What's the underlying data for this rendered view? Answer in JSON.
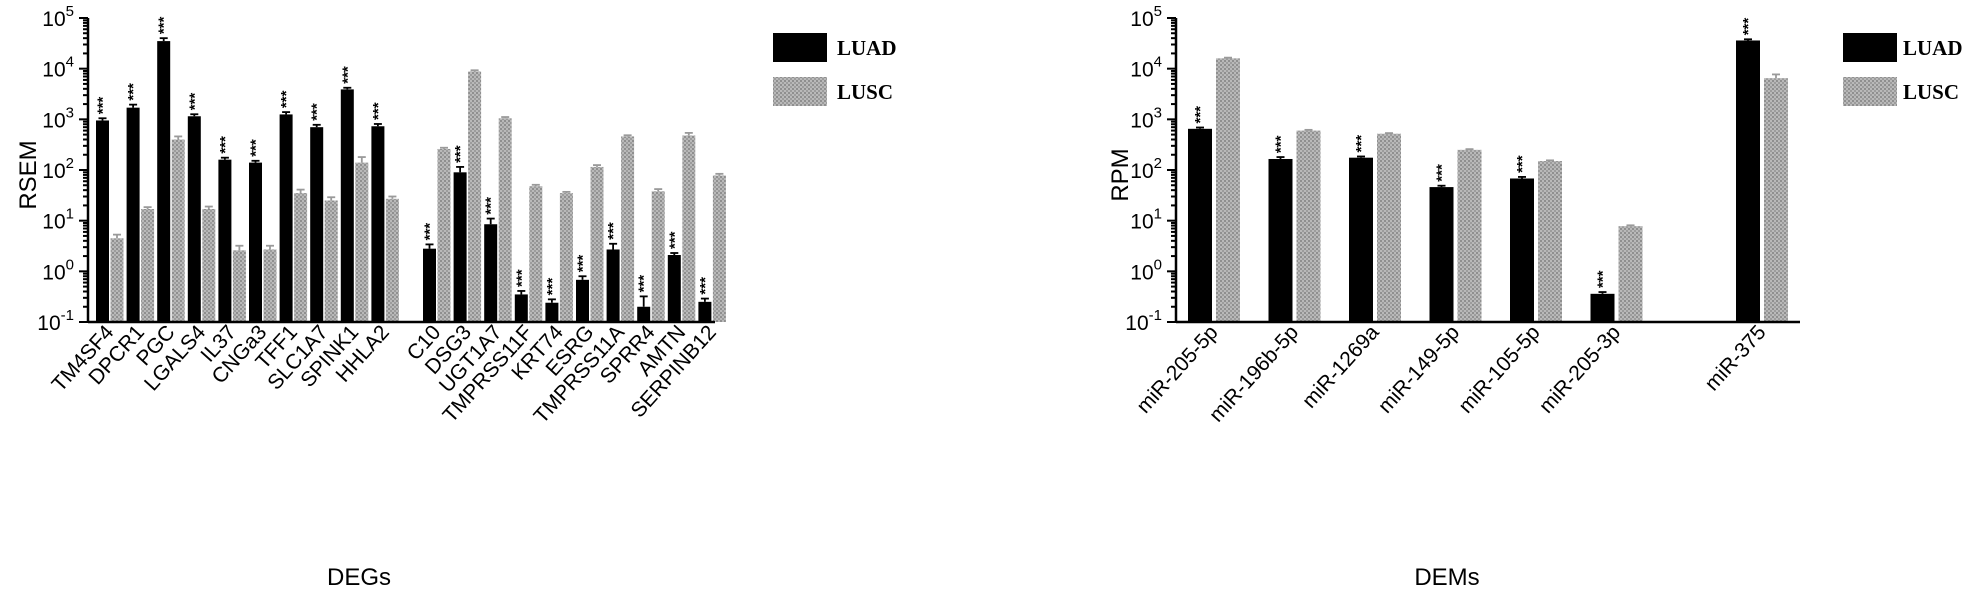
{
  "chart_data": [
    {
      "type": "bar",
      "yscale": "log",
      "ylim": [
        0.1,
        100000
      ],
      "ytick_labels": [
        {
          "base": "10",
          "exp": "-1"
        },
        {
          "base": "10",
          "exp": "0"
        },
        {
          "base": "10",
          "exp": "1"
        },
        {
          "base": "10",
          "exp": "2"
        },
        {
          "base": "10",
          "exp": "3"
        },
        {
          "base": "10",
          "exp": "4"
        },
        {
          "base": "10",
          "exp": "5"
        }
      ],
      "xlabel": "DEGs",
      "ylabel": "RSEM",
      "significance": "***",
      "groups": [
        {
          "categories": [
            "TM4SF4",
            "DPCR1",
            "PGC",
            "LGALS4",
            "IL37",
            "CNGa3",
            "TFF1",
            "SLC1A7",
            "SPINK1",
            "HHLA2"
          ],
          "LUAD": [
            950,
            1700,
            35000,
            1150,
            160,
            140,
            1250,
            700,
            3900,
            730
          ],
          "LUSC": [
            4.5,
            17,
            400,
            17,
            2.6,
            2.7,
            35,
            25,
            140,
            27
          ],
          "LUAD_err": [
            100,
            250,
            5000,
            110,
            15,
            12,
            140,
            80,
            300,
            80
          ],
          "LUSC_err": [
            0.8,
            1.5,
            60,
            2,
            0.6,
            0.5,
            6,
            4,
            40,
            3
          ],
          "sig_on": "LUAD"
        },
        {
          "categories": [
            "C10",
            "DSG3",
            "UGT1A7",
            "TMPRSS11F",
            "KRT74",
            "ESRG",
            "TMPRSS11A",
            "SPRR4",
            "AMTN",
            "SERPINB12"
          ],
          "LUAD": [
            2.8,
            90,
            8.5,
            0.35,
            0.24,
            0.68,
            2.7,
            0.2,
            2.1,
            0.25
          ],
          "LUSC": [
            260,
            8800,
            1050,
            48,
            35,
            115,
            460,
            38,
            480,
            78
          ],
          "LUAD_err": [
            0.6,
            25,
            2.5,
            0.06,
            0.04,
            0.12,
            0.8,
            0.12,
            0.2,
            0.04
          ],
          "LUSC_err": [
            15,
            500,
            60,
            3,
            2,
            10,
            25,
            4,
            60,
            6
          ],
          "sig_on": "LUAD"
        }
      ],
      "legend": {
        "position": "top-right",
        "entries": [
          {
            "label": "LUAD",
            "color": "#000000"
          },
          {
            "label": "LUSC",
            "color": "#aaaaaa"
          }
        ]
      }
    },
    {
      "type": "bar",
      "yscale": "log",
      "ylim": [
        0.1,
        100000
      ],
      "ytick_labels": [
        {
          "base": "10",
          "exp": "-1"
        },
        {
          "base": "10",
          "exp": "0"
        },
        {
          "base": "10",
          "exp": "1"
        },
        {
          "base": "10",
          "exp": "2"
        },
        {
          "base": "10",
          "exp": "3"
        },
        {
          "base": "10",
          "exp": "4"
        },
        {
          "base": "10",
          "exp": "5"
        }
      ],
      "xlabel": "DEMs",
      "ylabel": "RPM",
      "significance": "***",
      "groups": [
        {
          "categories": [
            "miR-205-5p",
            "miR-196b-5p",
            "miR-1269a",
            "miR-149-5p",
            "miR-105-5p",
            "miR-205-3p"
          ],
          "LUAD": [
            650,
            165,
            175,
            46,
            68,
            0.36
          ],
          "LUSC": [
            16000,
            600,
            520,
            250,
            150,
            7.8
          ],
          "LUAD_err": [
            40,
            15,
            10,
            3,
            5,
            0.03
          ],
          "LUSC_err": [
            500,
            20,
            15,
            8,
            5,
            0.3
          ],
          "sig_on": "LUAD"
        },
        {
          "categories": [
            "miR-375"
          ],
          "LUAD": [
            36000
          ],
          "LUSC": [
            6500
          ],
          "LUAD_err": [
            2000
          ],
          "LUSC_err": [
            1200
          ],
          "sig_on": "LUAD"
        }
      ],
      "legend": {
        "position": "top-right",
        "entries": [
          {
            "label": "LUAD",
            "color": "#000000"
          },
          {
            "label": "LUSC",
            "color": "#aaaaaa"
          }
        ]
      }
    }
  ]
}
